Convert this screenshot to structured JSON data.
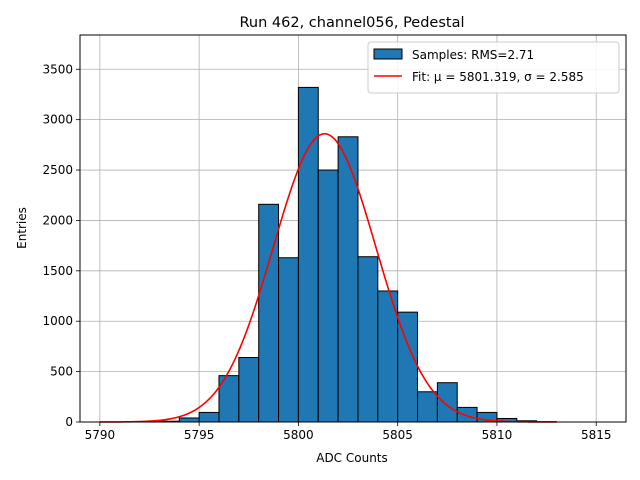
{
  "chart_data": {
    "type": "bar",
    "title": "Run 462, channel056, Pedestal",
    "xlabel": "ADC Counts",
    "ylabel": "Entries",
    "xlim": [
      5789,
      5816.5
    ],
    "ylim": [
      0,
      3840
    ],
    "xticks": [
      5790,
      5795,
      5800,
      5805,
      5810,
      5815
    ],
    "yticks": [
      0,
      500,
      1000,
      1500,
      2000,
      2500,
      3000,
      3500
    ],
    "grid": true,
    "bar_color": "#1f77b4",
    "fit_color": "#ff0000",
    "bin_width": 1,
    "bins": [
      {
        "x0": 5792,
        "value": 3
      },
      {
        "x0": 5793,
        "value": 8
      },
      {
        "x0": 5794,
        "value": 40
      },
      {
        "x0": 5795,
        "value": 95
      },
      {
        "x0": 5796,
        "value": 460
      },
      {
        "x0": 5797,
        "value": 640
      },
      {
        "x0": 5798,
        "value": 2160
      },
      {
        "x0": 5799,
        "value": 1630
      },
      {
        "x0": 5800,
        "value": 3320
      },
      {
        "x0": 5801,
        "value": 2500
      },
      {
        "x0": 5802,
        "value": 2830
      },
      {
        "x0": 5803,
        "value": 1640
      },
      {
        "x0": 5804,
        "value": 1300
      },
      {
        "x0": 5805,
        "value": 1090
      },
      {
        "x0": 5806,
        "value": 300
      },
      {
        "x0": 5807,
        "value": 390
      },
      {
        "x0": 5808,
        "value": 145
      },
      {
        "x0": 5809,
        "value": 95
      },
      {
        "x0": 5810,
        "value": 35
      },
      {
        "x0": 5811,
        "value": 12
      },
      {
        "x0": 5812,
        "value": 3
      }
    ],
    "fit": {
      "mu": 5801.319,
      "sigma": 2.585,
      "amplitude": 2860,
      "x_range": [
        5790,
        5813
      ]
    },
    "legend": {
      "position": "upper right",
      "entries": [
        {
          "key": "samples",
          "label": "Samples: RMS=2.71"
        },
        {
          "key": "fit",
          "label": "Fit: μ = 5801.319, σ = 2.585"
        }
      ]
    }
  }
}
